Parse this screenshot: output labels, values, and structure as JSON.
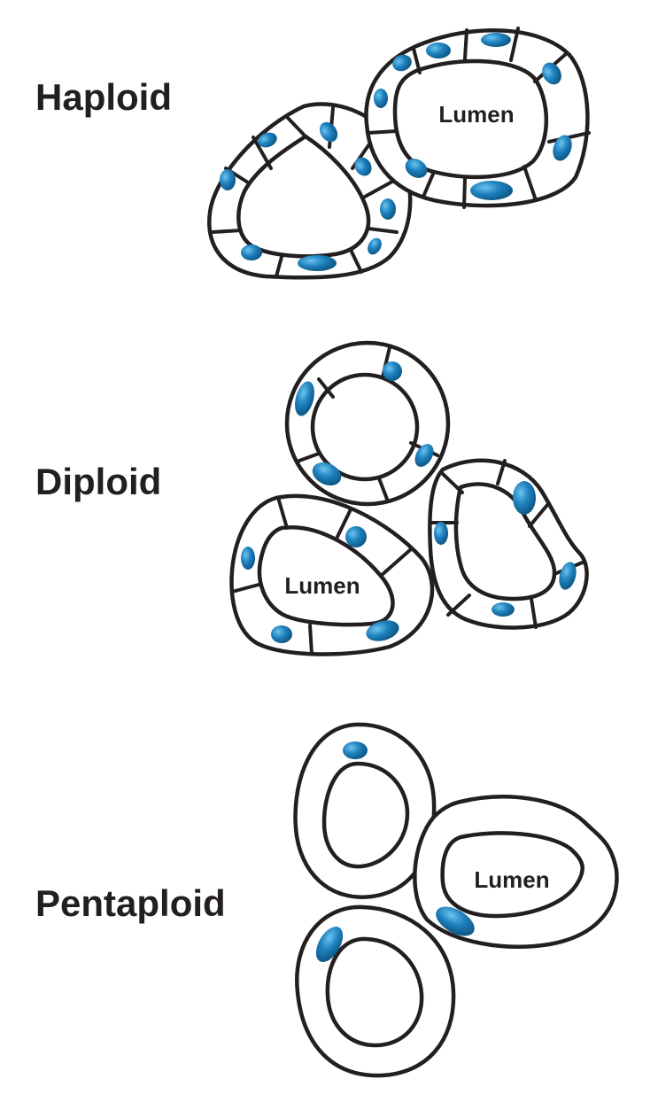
{
  "labels": {
    "haploid": "Haploid",
    "diploid": "Diploid",
    "pentaploid": "Pentaploid"
  },
  "lumen_label": "Lumen",
  "colors": {
    "nucleus": "#1f77b4",
    "nucleus_dark": "#0b4f7a",
    "nucleus_light": "#49a6d8",
    "outline": "#231f20",
    "background": "#ffffff"
  }
}
